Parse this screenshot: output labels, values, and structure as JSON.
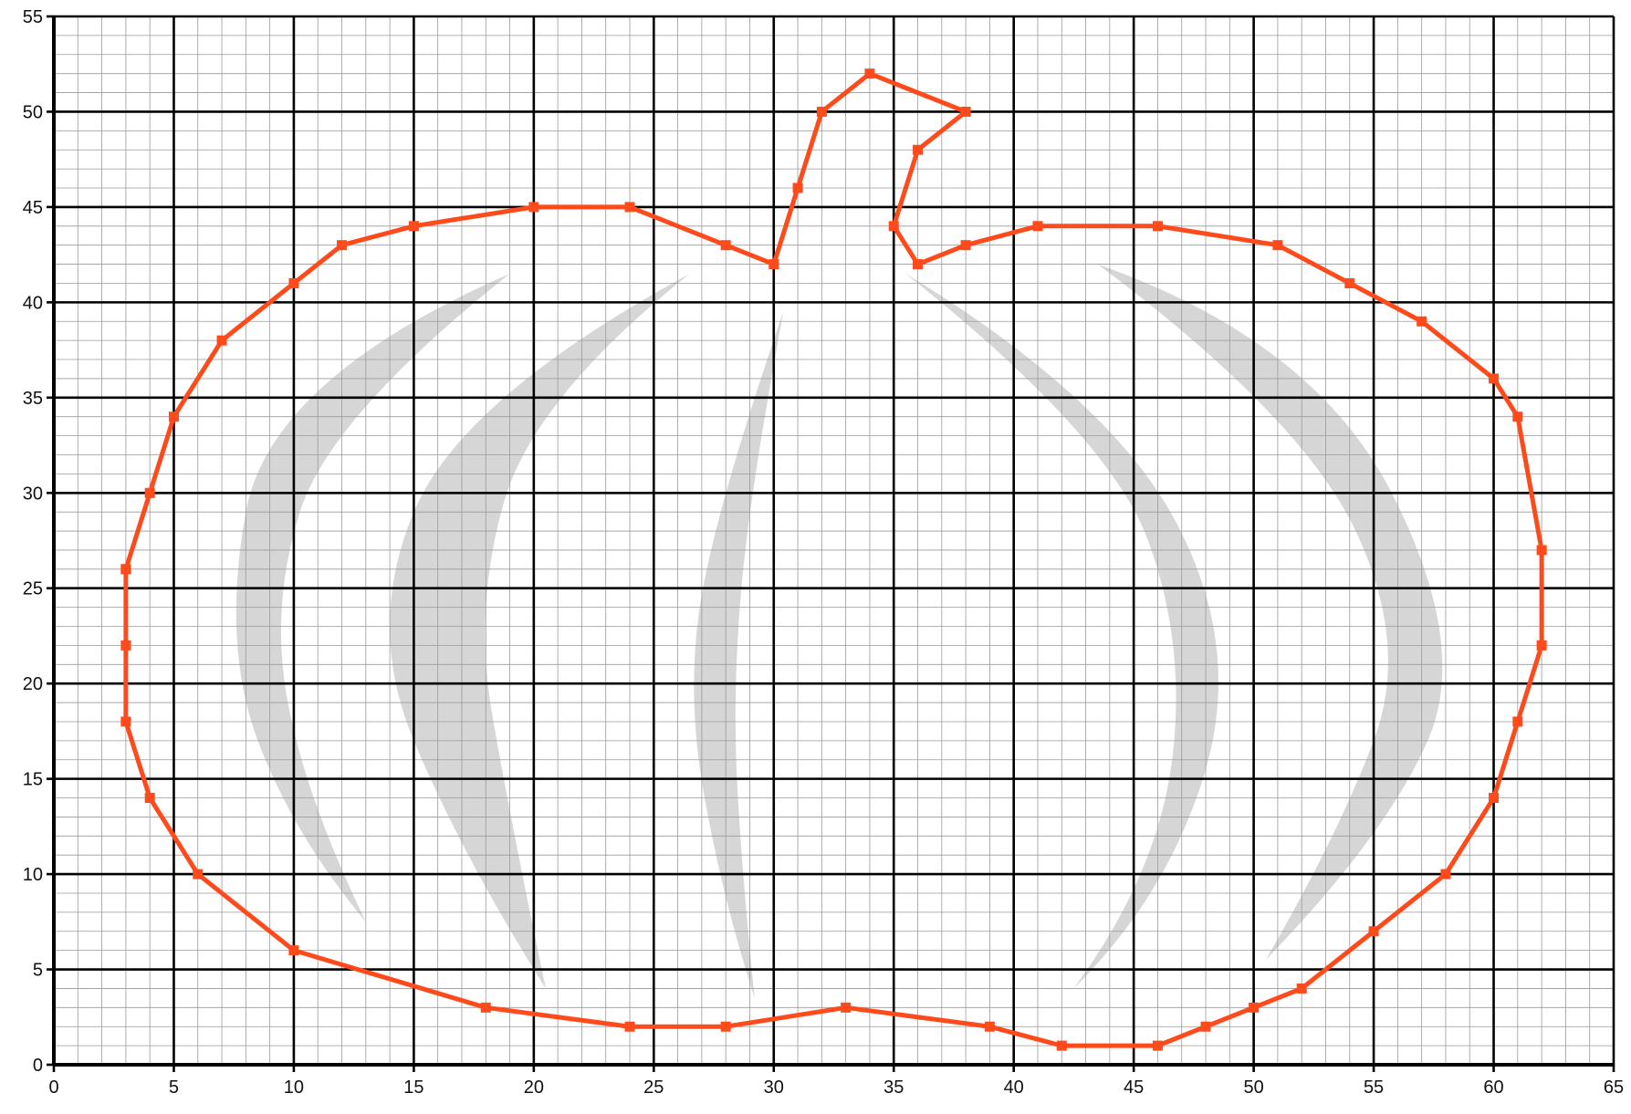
{
  "chart_data": {
    "type": "scatter",
    "title": "",
    "xlabel": "",
    "ylabel": "",
    "xlim": [
      0,
      65
    ],
    "ylim": [
      0,
      55
    ],
    "x_ticks": [
      0,
      5,
      10,
      15,
      20,
      25,
      30,
      35,
      40,
      45,
      50,
      55,
      60,
      65
    ],
    "y_ticks": [
      0,
      5,
      10,
      15,
      20,
      25,
      30,
      35,
      40,
      45,
      50,
      55
    ],
    "grid": true,
    "minor_grid": {
      "x_step": 1,
      "y_step": 1
    },
    "legend": "none",
    "background_image": "gray pumpkin rib crescents",
    "series": [
      {
        "color": "#ff4a1c",
        "marker": "square",
        "connected": true,
        "x": [
          3,
          4,
          5,
          7,
          10,
          12,
          15,
          20,
          24,
          28,
          30,
          31,
          32,
          34,
          38,
          36,
          35,
          36,
          38,
          41,
          46,
          51,
          54,
          57,
          60,
          61,
          62,
          62,
          61,
          60,
          58,
          55,
          52,
          50,
          48,
          46,
          42,
          39,
          33,
          28,
          24,
          18,
          10,
          6,
          4,
          3,
          3,
          3
        ],
        "y": [
          26,
          30,
          34,
          38,
          41,
          43,
          44,
          45,
          45,
          43,
          42,
          46,
          50,
          52,
          50,
          48,
          44,
          42,
          43,
          44,
          44,
          43,
          41,
          39,
          36,
          34,
          27,
          22,
          18,
          14,
          10,
          7,
          4,
          3,
          2,
          1,
          1,
          2,
          3,
          2,
          2,
          3,
          6,
          10,
          14,
          18,
          22,
          26
        ]
      }
    ]
  },
  "colors": {
    "outline": "#ff4a1c",
    "major_grid": "#000000",
    "minor_grid": "#9a9a9a",
    "ribs": "#d6d6d6"
  }
}
